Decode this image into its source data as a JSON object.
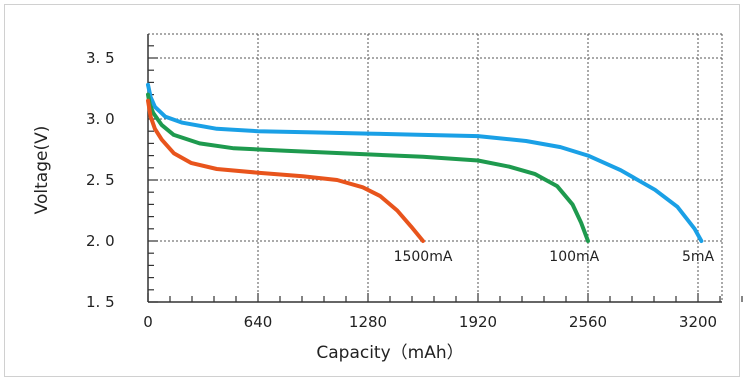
{
  "chart_data": {
    "type": "line",
    "title": "",
    "xlabel": "Capacity（mAh）",
    "ylabel": "Voltage(V)",
    "xlim": [
      0,
      3500
    ],
    "ylim": [
      1.5,
      3.7
    ],
    "x_ticks": [
      0,
      640,
      1280,
      1920,
      2560,
      3200
    ],
    "x_tick_labels": [
      "0",
      "640",
      "1280",
      "1920",
      "2560",
      "3200"
    ],
    "y_ticks": [
      1.5,
      2.0,
      2.5,
      3.0,
      3.5
    ],
    "y_tick_labels": [
      "1. 5",
      "2. 0",
      "2. 5",
      "3. 0",
      "3. 5"
    ],
    "grid": true,
    "series": [
      {
        "name": "5mA",
        "color": "#1aa0e6",
        "points": [
          [
            0,
            3.28
          ],
          [
            15,
            3.18
          ],
          [
            40,
            3.1
          ],
          [
            100,
            3.02
          ],
          [
            200,
            2.97
          ],
          [
            400,
            2.92
          ],
          [
            640,
            2.9
          ],
          [
            960,
            2.89
          ],
          [
            1280,
            2.88
          ],
          [
            1600,
            2.87
          ],
          [
            1920,
            2.86
          ],
          [
            2200,
            2.82
          ],
          [
            2400,
            2.77
          ],
          [
            2560,
            2.7
          ],
          [
            2750,
            2.58
          ],
          [
            2950,
            2.42
          ],
          [
            3080,
            2.28
          ],
          [
            3180,
            2.1
          ],
          [
            3220,
            2.0
          ]
        ]
      },
      {
        "name": "100mA",
        "color": "#1e9a4e",
        "points": [
          [
            0,
            3.2
          ],
          [
            10,
            3.12
          ],
          [
            30,
            3.05
          ],
          [
            80,
            2.95
          ],
          [
            150,
            2.87
          ],
          [
            300,
            2.8
          ],
          [
            500,
            2.76
          ],
          [
            800,
            2.74
          ],
          [
            1280,
            2.71
          ],
          [
            1600,
            2.69
          ],
          [
            1920,
            2.66
          ],
          [
            2100,
            2.61
          ],
          [
            2250,
            2.55
          ],
          [
            2380,
            2.45
          ],
          [
            2470,
            2.3
          ],
          [
            2520,
            2.15
          ],
          [
            2560,
            2.0
          ]
        ]
      },
      {
        "name": "1500mA",
        "color": "#e8541c",
        "points": [
          [
            0,
            3.15
          ],
          [
            15,
            3.02
          ],
          [
            40,
            2.92
          ],
          [
            80,
            2.83
          ],
          [
            150,
            2.72
          ],
          [
            250,
            2.64
          ],
          [
            400,
            2.59
          ],
          [
            640,
            2.56
          ],
          [
            900,
            2.53
          ],
          [
            1100,
            2.5
          ],
          [
            1250,
            2.44
          ],
          [
            1350,
            2.37
          ],
          [
            1450,
            2.25
          ],
          [
            1530,
            2.12
          ],
          [
            1600,
            2.0
          ]
        ]
      }
    ],
    "annotations": [
      {
        "text": "1500mA",
        "x": 1600,
        "y": 1.92
      },
      {
        "text": "100mA",
        "x": 2480,
        "y": 1.92
      },
      {
        "text": "5mA",
        "x": 3200,
        "y": 1.92
      }
    ]
  }
}
